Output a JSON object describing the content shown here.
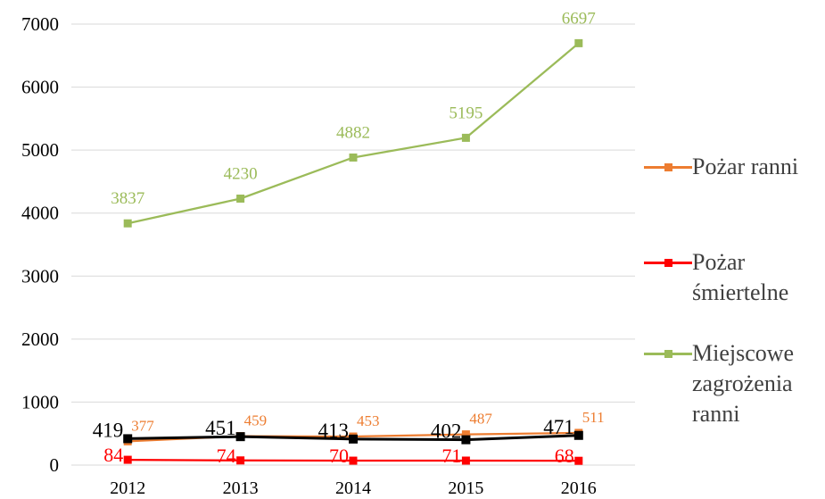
{
  "chart_data": {
    "type": "line",
    "categories": [
      "2012",
      "2013",
      "2014",
      "2015",
      "2016"
    ],
    "ylim": [
      0,
      7000
    ],
    "yticks": [
      0,
      1000,
      2000,
      3000,
      4000,
      5000,
      6000,
      7000
    ],
    "grid": true,
    "legend_position": "right",
    "series": [
      {
        "name": "Pożar ranni",
        "color": "#ed7d31",
        "values": [
          377,
          459,
          453,
          487,
          511
        ]
      },
      {
        "name": "Pożar śmiertelne",
        "color": "#ff0000",
        "values": [
          84,
          74,
          70,
          71,
          68
        ]
      },
      {
        "name": "Miejscowe zagrożenia ranni",
        "color": "#9bbb59",
        "values": [
          3837,
          4230,
          4882,
          5195,
          6697
        ]
      },
      {
        "name": "",
        "color": "#000000",
        "values": [
          419,
          451,
          413,
          402,
          471
        ]
      }
    ]
  }
}
